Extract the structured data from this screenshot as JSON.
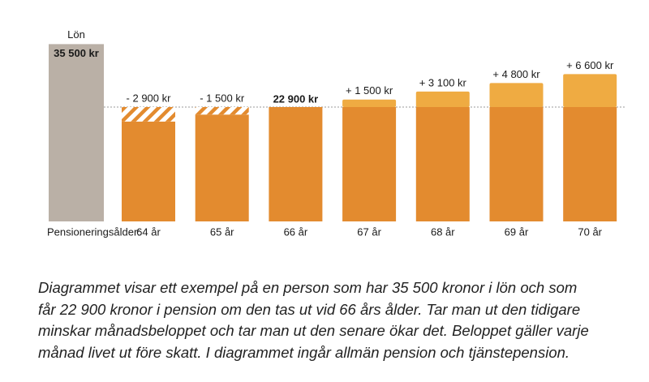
{
  "chart_data": {
    "type": "bar",
    "x_label": "Pensioneringsålder:",
    "salary": {
      "name": "Lön",
      "value": 35500,
      "value_label": "35 500 kr",
      "color": "#bab0a6"
    },
    "categories": [
      "64 år",
      "65 år",
      "66 år",
      "67 år",
      "68 år",
      "69 år",
      "70 år"
    ],
    "base": 22900,
    "base_label": "22 900 kr",
    "base_color": "#e38b2f",
    "changes": [
      -2900,
      -1500,
      0,
      1500,
      3100,
      4800,
      6600
    ],
    "change_labels": [
      "- 2 900 kr",
      "- 1 500 kr",
      null,
      "+ 1 500 kr",
      "+ 3 100 kr",
      "+ 4 800 kr",
      "+ 6 600 kr"
    ],
    "increase_color": "#efab42",
    "ylim": [
      0,
      38000
    ]
  },
  "caption_lines": [
    "Diagrammet visar ett exempel på en person som har 35 500 kronor i lön och som",
    "får 22 900 kronor i pension om den tas ut vid 66 års ålder. Tar man ut den tidigare",
    "minskar månadsbeloppet och tar man ut den senare ökar det. Beloppet gäller varje",
    "månad livet ut före skatt. I diagrammet ingår allmän pension och tjänstepension."
  ]
}
